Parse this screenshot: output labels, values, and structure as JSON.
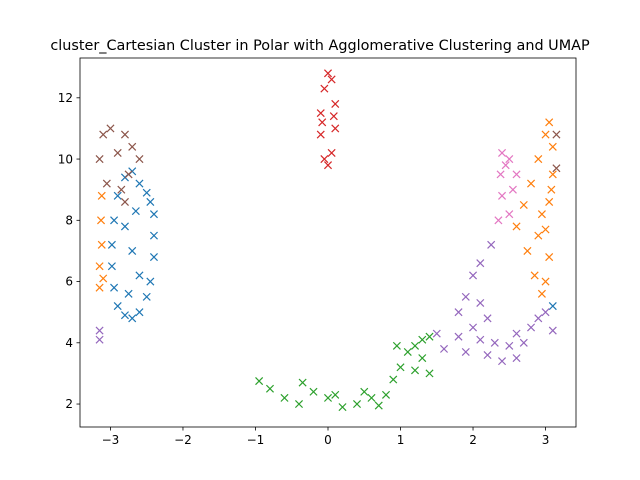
{
  "chart_data": {
    "type": "scatter",
    "title": "cluster_Cartesian Cluster in Polar with Agglomerative Clustering and UMAP",
    "xlabel": "",
    "ylabel": "",
    "xlim": [
      -3.42,
      3.42
    ],
    "ylim": [
      1.25,
      13.3
    ],
    "xticks": [
      -3,
      -2,
      -1,
      0,
      1,
      2,
      3
    ],
    "yticks": [
      2,
      4,
      6,
      8,
      10,
      12
    ],
    "grid": false,
    "legend": "none",
    "marker": "x",
    "series": [
      {
        "color": "#1f77b4",
        "points": [
          [
            -2.95,
            5.8
          ],
          [
            -2.9,
            5.2
          ],
          [
            -2.8,
            4.9
          ],
          [
            -2.7,
            4.8
          ],
          [
            -2.6,
            5.0
          ],
          [
            -2.5,
            5.5
          ],
          [
            -2.45,
            6.0
          ],
          [
            -2.4,
            6.8
          ],
          [
            -2.4,
            7.5
          ],
          [
            -2.4,
            8.2
          ],
          [
            -2.45,
            8.6
          ],
          [
            -2.5,
            8.9
          ],
          [
            -2.6,
            9.2
          ],
          [
            -2.7,
            9.6
          ],
          [
            -2.8,
            9.4
          ],
          [
            -2.9,
            8.8
          ],
          [
            -2.95,
            8.0
          ],
          [
            -2.98,
            7.2
          ],
          [
            -2.98,
            6.5
          ],
          [
            -2.7,
            7.0
          ],
          [
            -2.6,
            6.2
          ],
          [
            -2.8,
            7.8
          ],
          [
            -2.65,
            8.3
          ],
          [
            -2.75,
            5.6
          ],
          [
            3.1,
            5.2
          ]
        ]
      },
      {
        "color": "#ff7f0e",
        "points": [
          [
            -3.15,
            5.8
          ],
          [
            -3.15,
            6.5
          ],
          [
            -3.12,
            7.2
          ],
          [
            -3.13,
            8.0
          ],
          [
            -3.12,
            8.8
          ],
          [
            -3.1,
            6.1
          ],
          [
            2.6,
            7.8
          ],
          [
            2.7,
            8.5
          ],
          [
            2.8,
            9.2
          ],
          [
            2.9,
            10.0
          ],
          [
            3.0,
            10.8
          ],
          [
            3.05,
            11.2
          ],
          [
            3.1,
            10.4
          ],
          [
            3.1,
            9.5
          ],
          [
            3.05,
            8.6
          ],
          [
            3.0,
            7.7
          ],
          [
            3.05,
            6.8
          ],
          [
            3.0,
            6.0
          ],
          [
            2.95,
            5.6
          ],
          [
            2.85,
            6.2
          ],
          [
            2.75,
            7.0
          ],
          [
            2.9,
            7.5
          ],
          [
            3.08,
            9.0
          ],
          [
            2.95,
            8.2
          ]
        ]
      },
      {
        "color": "#2ca02c",
        "points": [
          [
            -0.95,
            2.75
          ],
          [
            -0.8,
            2.5
          ],
          [
            -0.6,
            2.2
          ],
          [
            -0.4,
            2.0
          ],
          [
            -0.35,
            2.7
          ],
          [
            -0.2,
            2.4
          ],
          [
            0.0,
            2.2
          ],
          [
            0.2,
            1.9
          ],
          [
            0.4,
            2.0
          ],
          [
            0.5,
            2.4
          ],
          [
            0.6,
            2.2
          ],
          [
            0.7,
            1.95
          ],
          [
            0.8,
            2.3
          ],
          [
            0.9,
            2.8
          ],
          [
            1.0,
            3.2
          ],
          [
            1.1,
            3.7
          ],
          [
            1.2,
            3.9
          ],
          [
            1.3,
            4.1
          ],
          [
            1.4,
            4.2
          ],
          [
            1.3,
            3.5
          ],
          [
            1.2,
            3.1
          ],
          [
            1.4,
            3.0
          ],
          [
            0.95,
            3.9
          ],
          [
            0.1,
            2.3
          ]
        ]
      },
      {
        "color": "#d62728",
        "points": [
          [
            -0.05,
            10.0
          ],
          [
            0.05,
            10.2
          ],
          [
            -0.1,
            10.8
          ],
          [
            0.1,
            11.0
          ],
          [
            -0.1,
            11.5
          ],
          [
            0.1,
            11.8
          ],
          [
            -0.05,
            12.3
          ],
          [
            0.05,
            12.6
          ],
          [
            0.0,
            12.8
          ],
          [
            0.0,
            9.8
          ],
          [
            0.08,
            11.4
          ],
          [
            -0.08,
            11.2
          ]
        ]
      },
      {
        "color": "#9467bd",
        "points": [
          [
            -3.15,
            4.4
          ],
          [
            -3.15,
            4.1
          ],
          [
            1.5,
            4.3
          ],
          [
            1.6,
            3.8
          ],
          [
            1.8,
            4.2
          ],
          [
            1.9,
            3.7
          ],
          [
            2.0,
            4.5
          ],
          [
            2.1,
            4.1
          ],
          [
            2.2,
            3.6
          ],
          [
            2.3,
            4.0
          ],
          [
            2.4,
            3.4
          ],
          [
            2.5,
            3.9
          ],
          [
            2.6,
            4.3
          ],
          [
            2.7,
            4.0
          ],
          [
            2.8,
            4.5
          ],
          [
            2.9,
            4.8
          ],
          [
            3.0,
            5.0
          ],
          [
            1.8,
            5.0
          ],
          [
            1.9,
            5.5
          ],
          [
            2.0,
            6.2
          ],
          [
            2.1,
            6.6
          ],
          [
            2.25,
            7.2
          ],
          [
            2.1,
            5.3
          ],
          [
            3.1,
            4.4
          ],
          [
            2.2,
            4.8
          ],
          [
            2.6,
            3.5
          ]
        ]
      },
      {
        "color": "#8c564b",
        "points": [
          [
            -3.15,
            10.0
          ],
          [
            -3.1,
            10.8
          ],
          [
            -3.0,
            11.0
          ],
          [
            -2.8,
            10.8
          ],
          [
            -2.7,
            10.4
          ],
          [
            -2.6,
            10.0
          ],
          [
            -2.75,
            9.5
          ],
          [
            -2.85,
            9.0
          ],
          [
            -2.8,
            8.6
          ],
          [
            -3.05,
            9.2
          ],
          [
            -2.9,
            10.2
          ],
          [
            3.15,
            10.8
          ],
          [
            3.15,
            9.7
          ]
        ]
      },
      {
        "color": "#e377c2",
        "points": [
          [
            2.35,
            8.0
          ],
          [
            2.4,
            8.8
          ],
          [
            2.38,
            9.5
          ],
          [
            2.4,
            10.2
          ],
          [
            2.5,
            10.0
          ],
          [
            2.55,
            9.0
          ],
          [
            2.5,
            8.2
          ],
          [
            2.6,
            9.5
          ],
          [
            2.45,
            9.8
          ]
        ]
      }
    ]
  }
}
